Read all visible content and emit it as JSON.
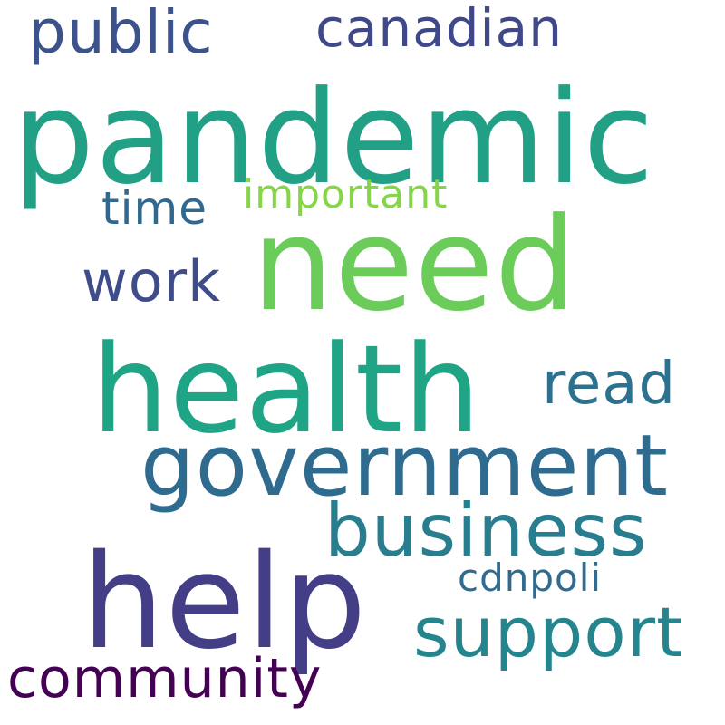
{
  "words": [
    {
      "text": "pandemic",
      "color": "#22a085"
    },
    {
      "text": "need",
      "color": "#6bcc5a"
    },
    {
      "text": "health",
      "color": "#20a486"
    },
    {
      "text": "help",
      "color": "#433e85"
    },
    {
      "text": "government",
      "color": "#2f6b8e"
    },
    {
      "text": "business",
      "color": "#287d8e"
    },
    {
      "text": "support",
      "color": "#25858e"
    },
    {
      "text": "community",
      "color": "#440154"
    },
    {
      "text": "public",
      "color": "#3b528b"
    },
    {
      "text": "canadian",
      "color": "#3f4889"
    },
    {
      "text": "read",
      "color": "#2c728e"
    },
    {
      "text": "work",
      "color": "#3e4c8a"
    },
    {
      "text": "time",
      "color": "#31688e"
    },
    {
      "text": "important",
      "color": "#86d549"
    },
    {
      "text": "cdnpoli",
      "color": "#306a8e"
    }
  ]
}
